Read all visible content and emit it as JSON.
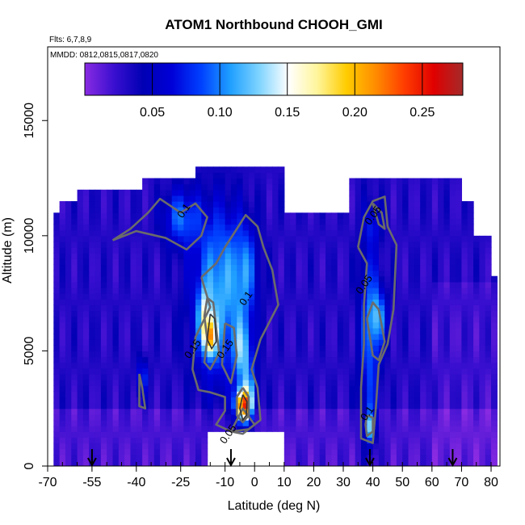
{
  "chart_data": {
    "type": "heatmap",
    "title": "ATOM1 Northbound CHOOH_GMI",
    "subtitle_lines": [
      "Flts: 6,7,8,9",
      "MMDD: 0812,0815,0817,0820"
    ],
    "xlabel": "Latitude (deg N)",
    "ylabel": "Altitude (m)",
    "xlim": [
      -70,
      83
    ],
    "ylim": [
      0,
      18200
    ],
    "x_ticks": [
      -70,
      -55,
      -40,
      -25,
      -10,
      0,
      10,
      20,
      30,
      40,
      50,
      60,
      70,
      80
    ],
    "x_tick_labels": [
      "-70",
      "-55",
      "-40",
      "-25",
      "-10",
      "0",
      "10",
      "20",
      "30",
      "40",
      "50",
      "60",
      "70",
      "80"
    ],
    "x_minor_step": 5,
    "y_ticks": [
      0,
      5000,
      10000,
      15000
    ],
    "y_tick_labels": [
      "0",
      "5000",
      "10000",
      "15000"
    ],
    "colorbar": {
      "range": [
        0,
        0.28
      ],
      "ticks": [
        0.05,
        0.1,
        0.15,
        0.2,
        0.25
      ],
      "tick_labels": [
        "0.05",
        "0.10",
        "0.15",
        "0.20",
        "0.25"
      ],
      "colors": [
        "#8a2be2",
        "#3a0fd0",
        "#0000b4",
        "#0000d8",
        "#0040ff",
        "#1f9fff",
        "#7fd4ff",
        "#ffffff",
        "#fff59a",
        "#ffcc00",
        "#ff8c00",
        "#ff3c00",
        "#e00000",
        "#a52a2a"
      ]
    },
    "flight_markers_lat": [
      -55,
      -8,
      39,
      67
    ],
    "contour_labels": [
      {
        "text": "0.1",
        "lat": -23,
        "alt": 11000
      },
      {
        "text": "0.1",
        "lat": -2,
        "alt": 7200
      },
      {
        "text": "0.15",
        "lat": -9,
        "alt": 5000
      },
      {
        "text": "0.15",
        "lat": -20,
        "alt": 5000
      },
      {
        "text": "0.05",
        "lat": -8,
        "alt": 1300
      },
      {
        "text": "0.05",
        "lat": 41,
        "alt": 10800
      },
      {
        "text": "0.05",
        "lat": 38,
        "alt": 7800
      },
      {
        "text": "0.1",
        "lat": 39,
        "alt": 2200
      }
    ]
  }
}
